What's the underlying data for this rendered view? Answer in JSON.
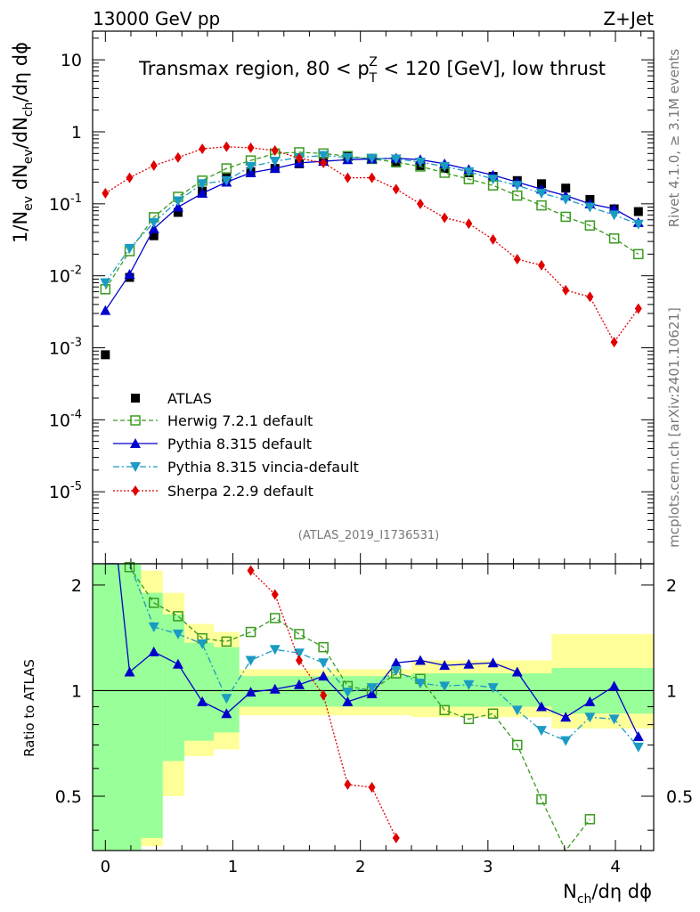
{
  "header": {
    "left": "13000 GeV pp",
    "right": "Z+Jet"
  },
  "side": {
    "rivet": "Rivet 4.1.0, ≥ 3.1M events",
    "mcplots": "mcplots.cern.ch [arXiv:2401.10621]"
  },
  "chart_data": {
    "type": "scatter",
    "title": "Transmax region, 80 < p_T^Z < 120 [GeV], low thrust",
    "analysis_id": "(ATLAS_2019_I1736531)",
    "xlabel": "N_ch/dη dϕ",
    "ylabel": "1/N_ev dN_ev/dN_ch/dη dϕ",
    "ratio_ylabel": "Ratio to ATLAS",
    "xlim": [
      -0.1,
      4.3
    ],
    "ylim": [
      1e-06,
      25
    ],
    "ylog": true,
    "ratio_ylim": [
      0.35,
      2.3
    ],
    "x_ticks": [
      "0",
      "1",
      "2",
      "3",
      "4"
    ],
    "y_ticks": [
      "10",
      "1",
      "10^-1",
      "10^-2",
      "10^-3",
      "10^-4",
      "10^-5"
    ],
    "ratio_ticks": [
      "2",
      "1",
      "0.5"
    ],
    "x": [
      0.0,
      0.19,
      0.38,
      0.57,
      0.76,
      0.95,
      1.14,
      1.33,
      1.52,
      1.71,
      1.9,
      2.09,
      2.28,
      2.47,
      2.66,
      2.85,
      3.04,
      3.23,
      3.42,
      3.61,
      3.8,
      3.99,
      4.18
    ],
    "series": [
      {
        "name": "ATLAS",
        "color": "#000000",
        "values": [
          0.0008,
          0.0095,
          0.036,
          0.076,
          0.15,
          0.23,
          0.28,
          0.31,
          0.36,
          0.39,
          0.45,
          0.42,
          0.37,
          0.34,
          0.31,
          0.27,
          0.24,
          0.21,
          0.19,
          0.165,
          0.115,
          0.085,
          0.078
        ]
      },
      {
        "name": "Herwig 7.2.1 default",
        "color": "#3a9a20",
        "values": [
          0.0065,
          0.022,
          0.065,
          0.125,
          0.21,
          0.31,
          0.4,
          0.5,
          0.52,
          0.5,
          0.46,
          0.42,
          0.38,
          0.33,
          0.27,
          0.22,
          0.18,
          0.13,
          0.095,
          0.066,
          0.05,
          0.033,
          0.02
        ]
      },
      {
        "name": "Pythia 8.315 default",
        "color": "#0000cc",
        "values": [
          0.0033,
          0.0105,
          0.045,
          0.09,
          0.14,
          0.2,
          0.27,
          0.31,
          0.37,
          0.39,
          0.41,
          0.42,
          0.43,
          0.41,
          0.36,
          0.3,
          0.25,
          0.2,
          0.16,
          0.13,
          0.1,
          0.085,
          0.055
        ]
      },
      {
        "name": "Pythia 8.315 vincia-default",
        "color": "#1a9bc4",
        "values": [
          0.008,
          0.024,
          0.055,
          0.11,
          0.19,
          0.21,
          0.33,
          0.39,
          0.44,
          0.47,
          0.44,
          0.43,
          0.42,
          0.38,
          0.33,
          0.28,
          0.22,
          0.18,
          0.14,
          0.115,
          0.09,
          0.07,
          0.052
        ]
      },
      {
        "name": "Sherpa 2.2.9 default",
        "color": "#e00000",
        "values": [
          0.14,
          0.23,
          0.34,
          0.44,
          0.58,
          0.62,
          0.6,
          0.55,
          0.43,
          0.37,
          0.23,
          0.23,
          0.16,
          0.1,
          0.064,
          0.053,
          0.032,
          0.017,
          0.014,
          0.0063,
          0.0051,
          0.0012,
          0.0035
        ]
      }
    ],
    "ratios": [
      {
        "name": "Herwig 7.2.1 default",
        "values": [
          null,
          2.25,
          1.78,
          1.63,
          1.41,
          1.38,
          1.47,
          1.61,
          1.45,
          1.33,
          1.03,
          1.0,
          1.12,
          1.08,
          0.88,
          0.83,
          0.86,
          0.7,
          0.49,
          0.3,
          0.43,
          null,
          null
        ]
      },
      {
        "name": "Pythia 8.315 default",
        "values": [
          null,
          1.13,
          1.29,
          1.19,
          0.93,
          0.86,
          0.99,
          1.01,
          1.04,
          1.1,
          0.93,
          0.98,
          1.2,
          1.22,
          1.18,
          1.19,
          1.2,
          1.13,
          0.9,
          0.84,
          0.93,
          1.03,
          0.74
        ]
      },
      {
        "name": "Pythia 8.315 vincia-default",
        "values": [
          null,
          2.4,
          1.52,
          1.45,
          1.36,
          0.95,
          1.22,
          1.31,
          1.28,
          1.2,
          0.99,
          1.02,
          1.14,
          1.05,
          1.03,
          1.04,
          1.02,
          0.88,
          0.77,
          0.72,
          0.84,
          0.83,
          0.69
        ]
      },
      {
        "name": "Sherpa 2.2.9 default",
        "values": [
          null,
          null,
          null,
          null,
          null,
          null,
          2.2,
          1.88,
          1.22,
          0.97,
          0.54,
          0.53,
          0.38,
          null,
          null,
          null,
          null,
          null,
          null,
          null,
          null,
          null,
          null
        ]
      }
    ],
    "band_green": [
      [
        -0.1,
        0.28,
        3.0
      ],
      [
        0.28,
        0.45,
        1.9
      ],
      [
        0.45,
        0.62,
        1.65
      ],
      [
        0.62,
        0.85,
        1.37
      ],
      [
        0.85,
        1.05,
        1.33
      ],
      [
        1.05,
        2.4,
        1.1
      ],
      [
        2.4,
        3.5,
        1.12
      ],
      [
        3.5,
        4.3,
        1.16
      ]
    ],
    "band_yellow": [
      [
        0.28,
        0.45,
        2.2
      ],
      [
        0.45,
        0.62,
        1.9
      ],
      [
        0.62,
        0.85,
        1.55
      ],
      [
        0.85,
        1.05,
        1.47
      ],
      [
        1.05,
        2.4,
        1.15
      ],
      [
        2.4,
        3.5,
        1.22
      ],
      [
        3.5,
        4.3,
        1.45
      ]
    ],
    "band_green_low": [
      [
        -0.1,
        0.28,
        0.3
      ],
      [
        0.28,
        0.45,
        0.38
      ],
      [
        0.45,
        0.62,
        0.63
      ],
      [
        0.62,
        0.85,
        0.72
      ],
      [
        0.85,
        1.05,
        0.76
      ],
      [
        1.05,
        2.4,
        0.9
      ],
      [
        2.4,
        3.5,
        0.9
      ],
      [
        3.5,
        4.3,
        0.86
      ]
    ],
    "band_yellow_low": [
      [
        0.28,
        0.45,
        0.36
      ],
      [
        0.45,
        0.62,
        0.5
      ],
      [
        0.62,
        0.85,
        0.65
      ],
      [
        0.85,
        1.05,
        0.68
      ],
      [
        1.05,
        2.4,
        0.85
      ],
      [
        2.4,
        3.5,
        0.84
      ],
      [
        3.5,
        4.3,
        0.78
      ]
    ]
  }
}
